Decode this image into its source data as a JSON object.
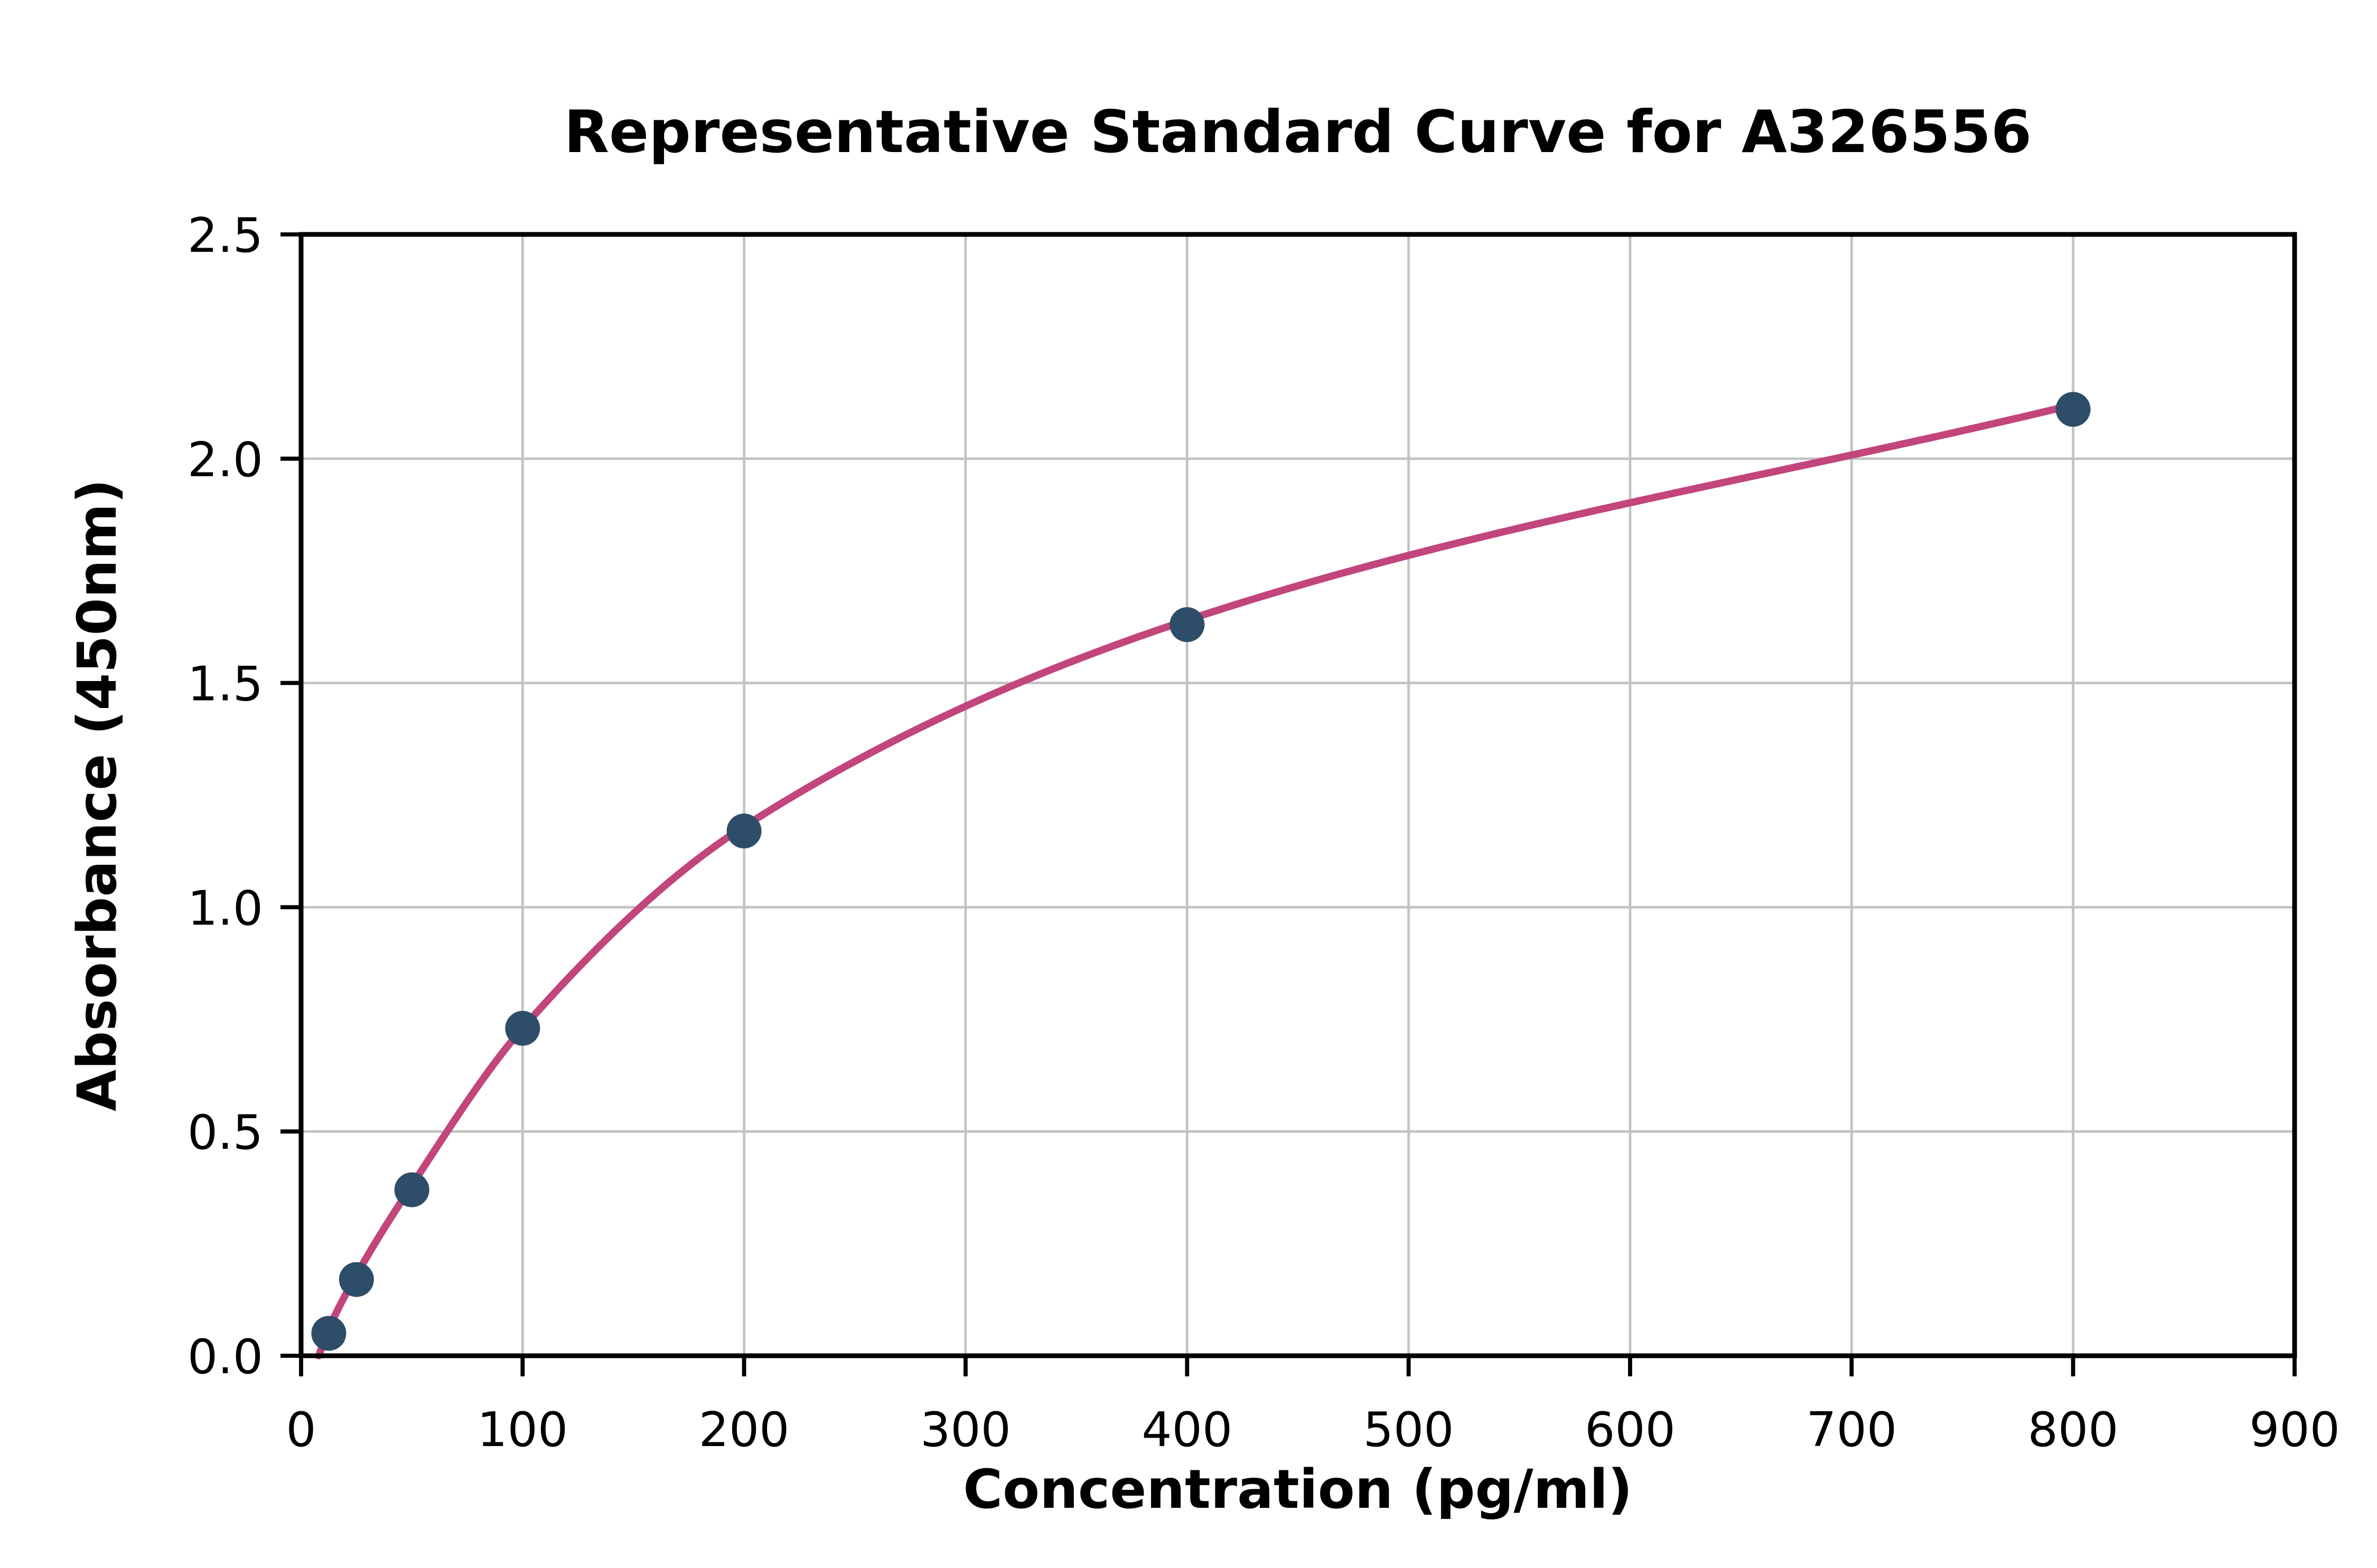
{
  "page": {
    "background": "#ffffff"
  },
  "chart_data": {
    "type": "scatter",
    "title": "Representative Standard Curve for A326556",
    "xlabel": "Concentration (pg/ml)",
    "ylabel": "Absorbance (450nm)",
    "xlim": [
      0,
      900
    ],
    "ylim": [
      0,
      2.5
    ],
    "x_ticks": [
      0,
      100,
      200,
      300,
      400,
      500,
      600,
      700,
      800,
      900
    ],
    "x_tick_labels": [
      "0",
      "100",
      "200",
      "300",
      "400",
      "500",
      "600",
      "700",
      "800",
      "900"
    ],
    "y_ticks": [
      0,
      0.5,
      1,
      1.5,
      2,
      2.5
    ],
    "y_tick_labels": [
      "0.0",
      "0.5",
      "1.0",
      "1.5",
      "2.0",
      "2.5"
    ],
    "grid": true,
    "legend": "none",
    "series": [
      {
        "name": "standards",
        "type": "scatter",
        "x": [
          12.5,
          25,
          50,
          100,
          200,
          400,
          800
        ],
        "y": [
          0.05,
          0.17,
          0.37,
          0.73,
          1.17,
          1.63,
          2.11
        ],
        "color": "#2e4d68"
      },
      {
        "name": "fit-curve",
        "type": "line",
        "x": [
          8,
          12.5,
          25,
          50,
          100,
          200,
          400,
          800
        ],
        "y": [
          0.0,
          0.06,
          0.18,
          0.38,
          0.73,
          1.18,
          1.64,
          2.12
        ],
        "color": "#c2457c"
      }
    ],
    "colors": {
      "grid": "#c3c3c3",
      "axis": "#000000",
      "background": "#ffffff"
    }
  }
}
